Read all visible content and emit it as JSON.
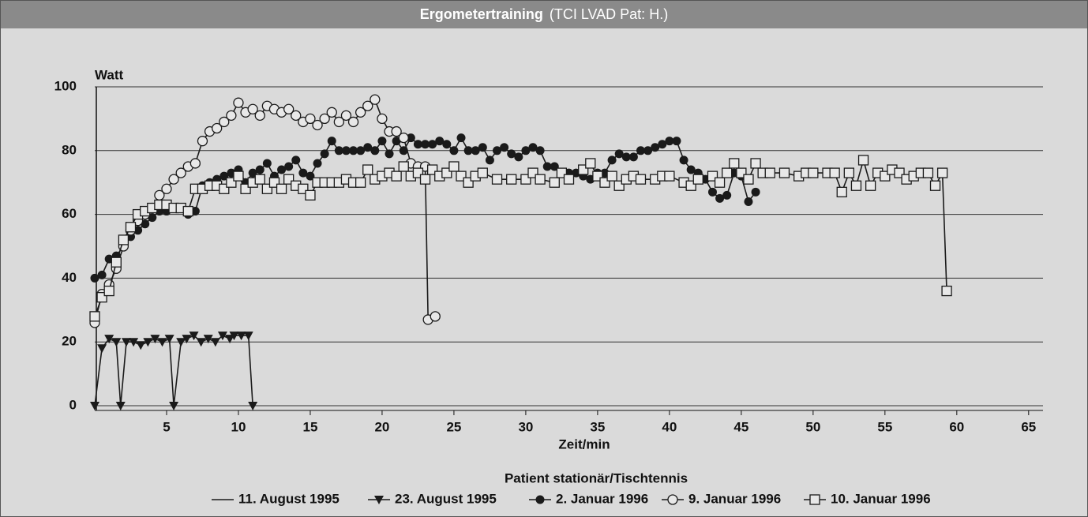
{
  "chart_data": {
    "type": "line",
    "title": "Ergometertraining",
    "subtitle": "(TCI LVAD Pat: H.)",
    "ylabel": "Watt",
    "xlabel": "Zeit/min",
    "legend_title": "Patient stationär/Tischtennis",
    "xlim": [
      0,
      66
    ],
    "ylim": [
      0,
      100
    ],
    "xticks": [
      5,
      10,
      15,
      20,
      25,
      30,
      35,
      40,
      45,
      50,
      55,
      60,
      65
    ],
    "yticks": [
      0,
      20,
      40,
      60,
      80,
      100
    ],
    "grid": true,
    "legend": "bottom",
    "series": [
      {
        "name": "11. August 1995",
        "color": "#1a1a1a",
        "marker": "none",
        "x": [],
        "values": []
      },
      {
        "name": "23. August 1995",
        "color": "#1a1a1a",
        "marker": "triangle-down",
        "x": [
          0,
          0.5,
          1,
          1.5,
          1.8,
          2.2,
          2.7,
          3.2,
          3.7,
          4.2,
          4.7,
          5.2,
          5.5,
          6.0,
          6.4,
          6.9,
          7.4,
          7.9,
          8.4,
          8.9,
          9.4,
          9.7,
          10.2,
          10.7,
          11
        ],
        "values": [
          0,
          18,
          21,
          20,
          0,
          20,
          20,
          19,
          20,
          21,
          20,
          21,
          0,
          20,
          21,
          22,
          20,
          21,
          20,
          22,
          21,
          22,
          22,
          22,
          0
        ]
      },
      {
        "name": "2. Januar 1996",
        "color": "#1a1a1a",
        "marker": "circle-filled",
        "x": [
          0,
          0.5,
          1,
          1.5,
          2,
          2.5,
          3,
          3.5,
          4,
          4.5,
          5,
          5.5,
          6,
          6.5,
          7,
          7.5,
          8,
          8.5,
          9,
          9.5,
          10,
          10.5,
          11,
          11.5,
          12,
          12.5,
          13,
          13.5,
          14,
          14.5,
          15,
          15.5,
          16,
          16.5,
          17,
          17.5,
          18,
          18.5,
          19,
          19.5,
          20,
          20.5,
          21,
          21.5,
          22,
          22.5,
          23,
          23.5,
          24,
          24.5,
          25,
          25.5,
          26,
          26.5,
          27,
          27.5,
          28,
          28.5,
          29,
          29.5,
          30,
          30.5,
          31,
          31.5,
          32,
          33,
          33.5,
          34,
          34.5,
          35,
          35.5,
          36,
          36.5,
          37,
          37.5,
          38,
          38.5,
          39,
          39.5,
          40,
          40.5,
          41,
          41.5,
          42,
          42.5,
          43,
          43.5,
          44,
          44.5,
          45,
          45.5,
          46
        ],
        "values": [
          40,
          41,
          46,
          47,
          50,
          53,
          55,
          57,
          59,
          61,
          61,
          62,
          62,
          60,
          61,
          69,
          70,
          71,
          72,
          73,
          74,
          70,
          73,
          74,
          76,
          72,
          74,
          75,
          77,
          73,
          72,
          76,
          79,
          83,
          80,
          80,
          80,
          80,
          81,
          80,
          83,
          79,
          83,
          80,
          84,
          82,
          82,
          82,
          83,
          82,
          80,
          84,
          80,
          80,
          81,
          77,
          80,
          81,
          79,
          78,
          80,
          81,
          80,
          75,
          75,
          73,
          73,
          72,
          71,
          73,
          73,
          77,
          79,
          78,
          78,
          80,
          80,
          81,
          82,
          83,
          83,
          77,
          74,
          73,
          71,
          67,
          65,
          66,
          73,
          72,
          64,
          67
        ]
      },
      {
        "name": "9. Januar 1996",
        "color": "#1a1a1a",
        "marker": "circle-open",
        "x": [
          0,
          0.5,
          1,
          1.5,
          2,
          2.5,
          3,
          3.5,
          4,
          4.5,
          5,
          5.5,
          6,
          6.5,
          7,
          7.5,
          8,
          8.5,
          9,
          9.5,
          10,
          10.5,
          11,
          11.5,
          12,
          12.5,
          13,
          13.5,
          14,
          14.5,
          15,
          15.5,
          16,
          16.5,
          17,
          17.5,
          18,
          18.5,
          19,
          19.5,
          20,
          20.5,
          21,
          21.5,
          22,
          22.5,
          23,
          23.2,
          23.7
        ],
        "values": [
          26,
          35,
          38,
          43,
          50,
          55,
          58,
          60,
          62,
          66,
          68,
          71,
          73,
          75,
          76,
          83,
          86,
          87,
          89,
          91,
          95,
          92,
          93,
          91,
          94,
          93,
          92,
          93,
          91,
          89,
          90,
          88,
          90,
          92,
          89,
          91,
          89,
          92,
          94,
          96,
          90,
          86,
          86,
          84,
          76,
          75,
          75,
          27,
          28
        ]
      },
      {
        "name": "10. Januar 1996",
        "color": "#1a1a1a",
        "marker": "square-open",
        "x": [
          0,
          0.5,
          1,
          1.5,
          2,
          2.5,
          3,
          3.5,
          4,
          4.5,
          5,
          5.5,
          6,
          6.5,
          7,
          7.5,
          8,
          8.5,
          9,
          9.5,
          10,
          10.5,
          11,
          11.5,
          12,
          12.5,
          13,
          13.5,
          14,
          14.5,
          15,
          15.5,
          16,
          16.5,
          17,
          17.5,
          18,
          18.5,
          19,
          19.5,
          20,
          20.5,
          21,
          21.5,
          22,
          22.5,
          23,
          23.5,
          24,
          24.5,
          25,
          25.5,
          26,
          26.5,
          27,
          28,
          29,
          30,
          30.5,
          31,
          32,
          32.5,
          33,
          34,
          34.5,
          35,
          35.5,
          36,
          36.5,
          37,
          37.5,
          38,
          39,
          39.5,
          40,
          41,
          41.5,
          42,
          43,
          43.5,
          44,
          44.5,
          45,
          45.5,
          46,
          46.5,
          47,
          48,
          49,
          49.5,
          50,
          51,
          51.5,
          52,
          52.5,
          53,
          53.5,
          54,
          54.5,
          55,
          55.5,
          56,
          56.5,
          57,
          57.5,
          58,
          58.5,
          59,
          59.3
        ],
        "values": [
          28,
          34,
          36,
          45,
          52,
          56,
          60,
          61,
          62,
          63,
          63,
          62,
          62,
          61,
          68,
          68,
          69,
          69,
          68,
          70,
          72,
          68,
          70,
          71,
          68,
          70,
          68,
          71,
          69,
          68,
          66,
          70,
          70,
          70,
          70,
          71,
          70,
          70,
          74,
          71,
          72,
          73,
          72,
          75,
          72,
          73,
          71,
          74,
          72,
          73,
          75,
          72,
          70,
          72,
          73,
          71,
          71,
          71,
          73,
          71,
          70,
          73,
          71,
          74,
          76,
          72,
          70,
          72,
          69,
          71,
          72,
          71,
          71,
          72,
          72,
          70,
          69,
          71,
          72,
          70,
          73,
          76,
          73,
          71,
          76,
          73,
          73,
          73,
          72,
          73,
          73,
          73,
          73,
          67,
          73,
          69,
          77,
          69,
          73,
          72,
          74,
          73,
          71,
          72,
          73,
          73,
          69,
          73,
          36
        ]
      }
    ]
  }
}
